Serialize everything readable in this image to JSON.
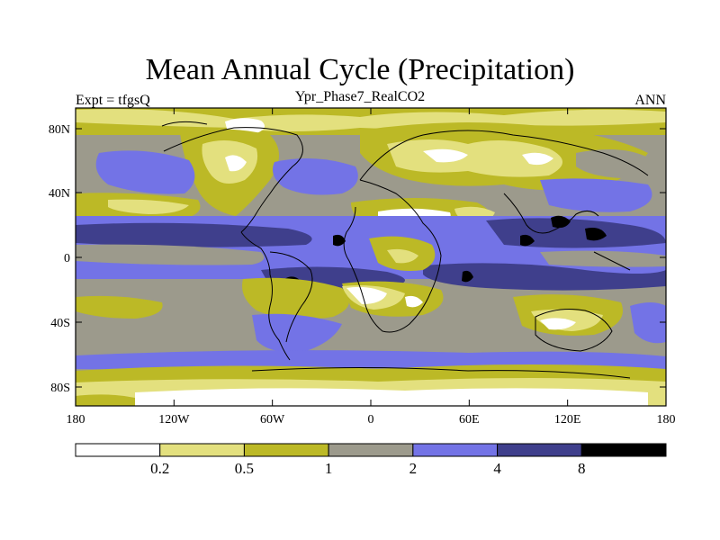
{
  "map": {
    "title": "Mean Annual Cycle (Precipitation)",
    "subtitle": "Ypr_Phase7_RealCO2",
    "left_string": "Expt = tfgsQ",
    "right_string": "ANN",
    "lat_ticks": [
      "80N",
      "40N",
      "0",
      "40S",
      "80S"
    ],
    "lon_ticks": [
      "180",
      "120W",
      "60W",
      "0",
      "60E",
      "120E",
      "180"
    ],
    "colorbar": {
      "labels": [
        "0.2",
        "0.5",
        "1",
        "2",
        "4",
        "8"
      ],
      "colors": [
        "#ffffff",
        "#e3e07e",
        "#bcb926",
        "#9c9a8c",
        "#7373e6",
        "#3f3f8c",
        "#000000"
      ]
    },
    "palette": {
      "white": "#ffffff",
      "light_yellow": "#e3e07e",
      "olive": "#bcb926",
      "gray": "#9c9a8c",
      "blue": "#7373e6",
      "dark_blue": "#3f3f8c",
      "black": "#000000"
    }
  }
}
